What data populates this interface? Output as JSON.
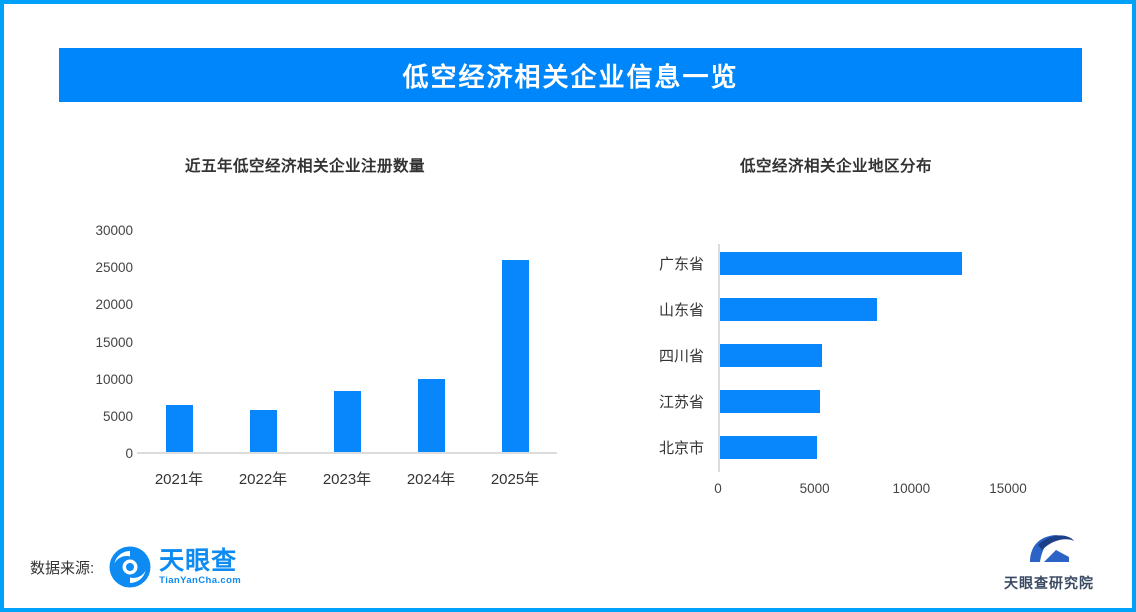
{
  "header": {
    "title": "低空经济相关企业信息一览"
  },
  "colors": {
    "page_border": "#00A1F8",
    "banner_bg": "#0086FB",
    "banner_text": "#FFFFFF",
    "bar": "#0787FB",
    "axis_line": "#DCDCDC",
    "title_text": "#333333",
    "tick_text": "#444444",
    "tianyancha_blue": "#0D8BF2",
    "research_text": "#3A4A63"
  },
  "chart_data": [
    {
      "type": "bar",
      "title": "近五年低空经济相关企业注册数量",
      "categories": [
        "2021年",
        "2022年",
        "2023年",
        "2024年",
        "2025年"
      ],
      "values": [
        6300,
        5700,
        8200,
        9800,
        25800
      ],
      "xlabel": "",
      "ylabel": "",
      "ylim": [
        0,
        30000
      ],
      "yticks": [
        0,
        5000,
        10000,
        15000,
        20000,
        25000,
        30000
      ],
      "grid": false,
      "legend": false,
      "bar_color": "#0787FB"
    },
    {
      "type": "hbar",
      "title": "低空经济相关企业地区分布",
      "categories": [
        "广东省",
        "山东省",
        "四川省",
        "江苏省",
        "北京市"
      ],
      "values": [
        12600,
        8200,
        5400,
        5300,
        5100
      ],
      "xlabel": "",
      "ylabel": "",
      "xlim": [
        0,
        15000
      ],
      "xticks": [
        0,
        5000,
        10000,
        15000
      ],
      "grid": false,
      "legend": false,
      "bar_color": "#0787FB"
    }
  ],
  "footer": {
    "source_label": "数据来源:",
    "tianyancha": {
      "name": "天眼查",
      "subtext": "TianYanCha.com"
    },
    "research_institute": "天眼查研究院"
  }
}
